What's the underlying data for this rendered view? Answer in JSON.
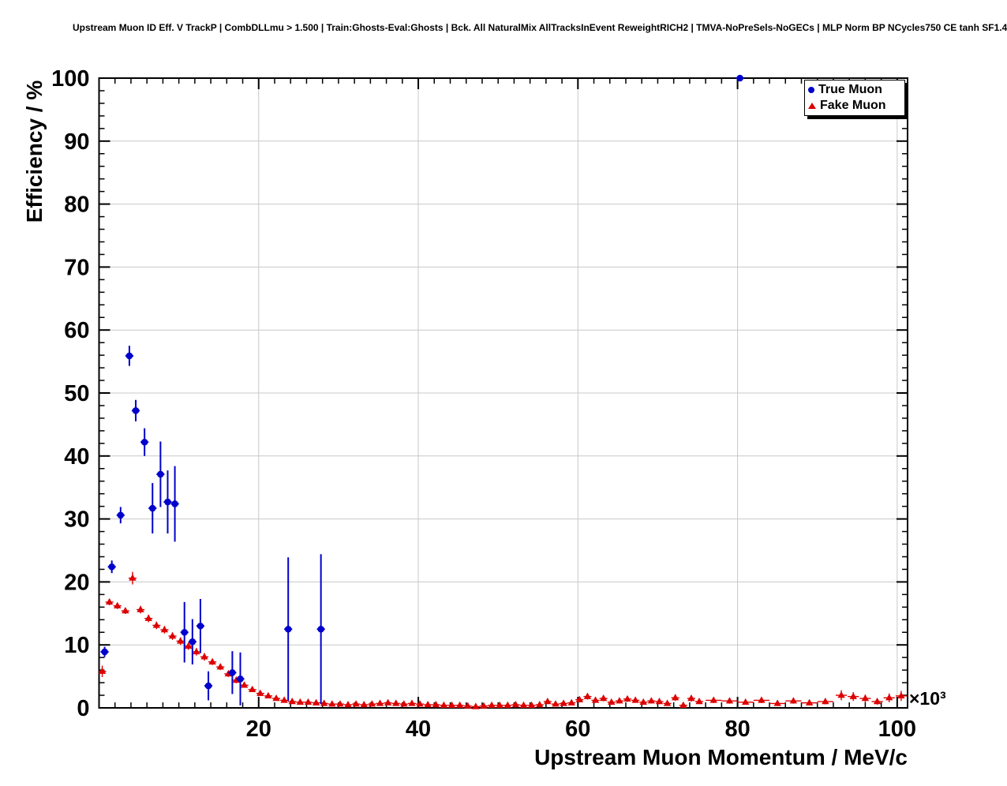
{
  "title": "Upstream Muon ID Eff. V TrackP | CombDLLmu > 1.500 | Train:Ghosts-Eval:Ghosts | Bck. All NaturalMix AllTracksInEvent ReweightRICH2 | TMVA-NoPreSels-NoGECs | MLP Norm BP NCycles750 CE tanh SF1.4",
  "chart_data": {
    "type": "scatter",
    "title": "Upstream Muon ID Eff. V TrackP | CombDLLmu > 1.500 | Train:Ghosts-Eval:Ghosts | Bck. All NaturalMix AllTracksInEvent ReweightRICH2 | TMVA-NoPreSels-NoGECs | MLP Norm BP NCycles750 CE tanh SF1.4",
    "xlabel": "Upstream Muon Momentum / MeV/c",
    "ylabel": "Efficiency / %",
    "x_exponent_label": "×10³",
    "xlim": [
      0,
      101.3
    ],
    "ylim": [
      0,
      100
    ],
    "grid": true,
    "grid_color": "#c8c8c8",
    "legend_position": "top-right",
    "x_major_ticks": [
      20,
      40,
      60,
      80,
      100
    ],
    "x_tick_labels": [
      "20",
      "40",
      "60",
      "80",
      "100"
    ],
    "x_minor_step": 2,
    "y_major_ticks": [
      0,
      10,
      20,
      30,
      40,
      50,
      60,
      70,
      80,
      90,
      100
    ],
    "y_tick_labels": [
      "0",
      "10",
      "20",
      "30",
      "40",
      "50",
      "60",
      "70",
      "80",
      "90",
      "100"
    ],
    "y_minor_step": 2,
    "point_format": [
      "x",
      "y",
      "ey",
      "ex_optional_default_0.5"
    ],
    "series": [
      {
        "name": "True Muon",
        "marker": "circle",
        "color": "#0000cc",
        "points": [
          [
            0.7,
            8.9,
            0.8
          ],
          [
            1.6,
            22.4,
            1.0
          ],
          [
            2.7,
            30.6,
            1.3
          ],
          [
            3.8,
            55.9,
            1.6
          ],
          [
            4.6,
            47.2,
            1.7
          ],
          [
            5.7,
            42.2,
            2.2
          ],
          [
            6.7,
            31.7,
            4.0
          ],
          [
            7.7,
            37.1,
            5.2
          ],
          [
            8.6,
            32.7,
            5.0
          ],
          [
            9.5,
            32.4,
            6.0
          ],
          [
            10.7,
            12.0,
            4.8
          ],
          [
            11.7,
            10.5,
            3.6
          ],
          [
            12.7,
            13.0,
            4.3
          ],
          [
            13.7,
            3.5,
            2.3
          ],
          [
            16.7,
            5.6,
            3.4
          ],
          [
            17.7,
            4.6,
            4.2
          ],
          [
            23.7,
            12.5,
            11.4
          ],
          [
            27.8,
            12.5,
            11.9
          ],
          [
            80.3,
            100.0,
            0.4
          ]
        ]
      },
      {
        "name": "Fake Muon",
        "marker": "triangle",
        "color": "#dd0000",
        "points": [
          [
            0.4,
            5.8,
            0.9
          ],
          [
            1.3,
            16.8,
            0.5
          ],
          [
            2.3,
            16.2,
            0.5
          ],
          [
            3.3,
            15.4,
            0.5
          ],
          [
            4.2,
            20.6,
            1.0
          ],
          [
            5.2,
            15.6,
            0.6
          ],
          [
            6.2,
            14.2,
            0.6
          ],
          [
            7.2,
            13.1,
            0.6
          ],
          [
            8.2,
            12.4,
            0.6
          ],
          [
            9.2,
            11.4,
            0.6
          ],
          [
            10.2,
            10.6,
            0.6
          ],
          [
            11.2,
            9.8,
            0.6
          ],
          [
            12.2,
            8.9,
            0.6
          ],
          [
            13.2,
            8.1,
            0.6
          ],
          [
            14.2,
            7.3,
            0.5
          ],
          [
            15.2,
            6.5,
            0.5
          ],
          [
            16.2,
            5.4,
            0.5
          ],
          [
            17.2,
            4.4,
            0.5
          ],
          [
            18.2,
            3.6,
            0.4
          ],
          [
            19.2,
            2.9,
            0.4
          ],
          [
            20.2,
            2.3,
            0.4
          ],
          [
            21.2,
            1.9,
            0.3
          ],
          [
            22.2,
            1.5,
            0.3
          ],
          [
            23.2,
            1.2,
            0.3
          ],
          [
            24.2,
            1.0,
            0.3
          ],
          [
            25.2,
            0.9,
            0.3
          ],
          [
            26.2,
            0.9,
            0.3
          ],
          [
            27.2,
            0.8,
            0.25
          ],
          [
            28.2,
            0.7,
            0.25
          ],
          [
            29.2,
            0.6,
            0.25
          ],
          [
            30.2,
            0.6,
            0.25
          ],
          [
            31.2,
            0.5,
            0.2
          ],
          [
            32.2,
            0.6,
            0.2
          ],
          [
            33.2,
            0.5,
            0.2
          ],
          [
            34.2,
            0.6,
            0.25
          ],
          [
            35.2,
            0.7,
            0.25
          ],
          [
            36.2,
            0.8,
            0.3
          ],
          [
            37.2,
            0.7,
            0.25
          ],
          [
            38.2,
            0.6,
            0.25
          ],
          [
            39.2,
            0.7,
            0.25
          ],
          [
            40.2,
            0.6,
            0.25
          ],
          [
            41.2,
            0.5,
            0.2
          ],
          [
            42.2,
            0.5,
            0.2
          ],
          [
            43.2,
            0.4,
            0.2
          ],
          [
            44.2,
            0.4,
            0.2
          ],
          [
            45.2,
            0.4,
            0.2
          ],
          [
            46.2,
            0.3,
            0.15
          ],
          [
            47.2,
            0.2,
            0.15
          ],
          [
            48.2,
            0.3,
            0.2
          ],
          [
            49.2,
            0.4,
            0.2
          ],
          [
            50.2,
            0.4,
            0.2
          ],
          [
            51.2,
            0.4,
            0.2
          ],
          [
            52.2,
            0.5,
            0.25
          ],
          [
            53.2,
            0.4,
            0.2
          ],
          [
            54.2,
            0.4,
            0.25
          ],
          [
            55.2,
            0.5,
            0.25
          ],
          [
            56.2,
            1.0,
            0.35
          ],
          [
            57.2,
            0.6,
            0.3
          ],
          [
            58.2,
            0.7,
            0.3
          ],
          [
            59.2,
            0.8,
            0.3
          ],
          [
            60.2,
            1.3,
            0.4
          ],
          [
            61.2,
            1.8,
            0.5
          ],
          [
            62.2,
            1.2,
            0.4
          ],
          [
            63.2,
            1.5,
            0.45
          ],
          [
            64.2,
            0.9,
            0.35
          ],
          [
            65.2,
            1.1,
            0.4
          ],
          [
            66.2,
            1.4,
            0.45
          ],
          [
            67.2,
            1.2,
            0.4
          ],
          [
            68.2,
            0.9,
            0.35
          ],
          [
            69.2,
            1.1,
            0.4
          ],
          [
            70.2,
            1.0,
            0.4
          ],
          [
            71.2,
            0.7,
            0.35
          ],
          [
            72.2,
            1.6,
            0.5
          ],
          [
            73.2,
            0.4,
            0.3
          ],
          [
            74.2,
            1.5,
            0.5
          ],
          [
            75.2,
            1.0,
            0.4
          ],
          [
            77.0,
            1.2,
            0.45,
            1.0
          ],
          [
            79.0,
            1.1,
            0.45,
            1.0
          ],
          [
            81.0,
            0.9,
            0.4,
            1.0
          ],
          [
            83.0,
            1.2,
            0.45,
            1.0
          ],
          [
            85.0,
            0.7,
            0.4,
            1.0
          ],
          [
            87.0,
            1.1,
            0.45,
            1.0
          ],
          [
            89.0,
            0.8,
            0.4,
            1.0
          ],
          [
            91.0,
            1.0,
            0.45,
            1.0
          ],
          [
            93.0,
            2.0,
            0.8,
            0.7
          ],
          [
            94.5,
            1.8,
            0.7,
            0.7
          ],
          [
            96.0,
            1.5,
            0.6,
            0.7
          ],
          [
            97.5,
            1.0,
            0.5,
            0.7
          ],
          [
            99.0,
            1.6,
            0.7,
            0.7
          ],
          [
            100.5,
            1.9,
            0.8,
            0.7
          ]
        ]
      }
    ]
  }
}
